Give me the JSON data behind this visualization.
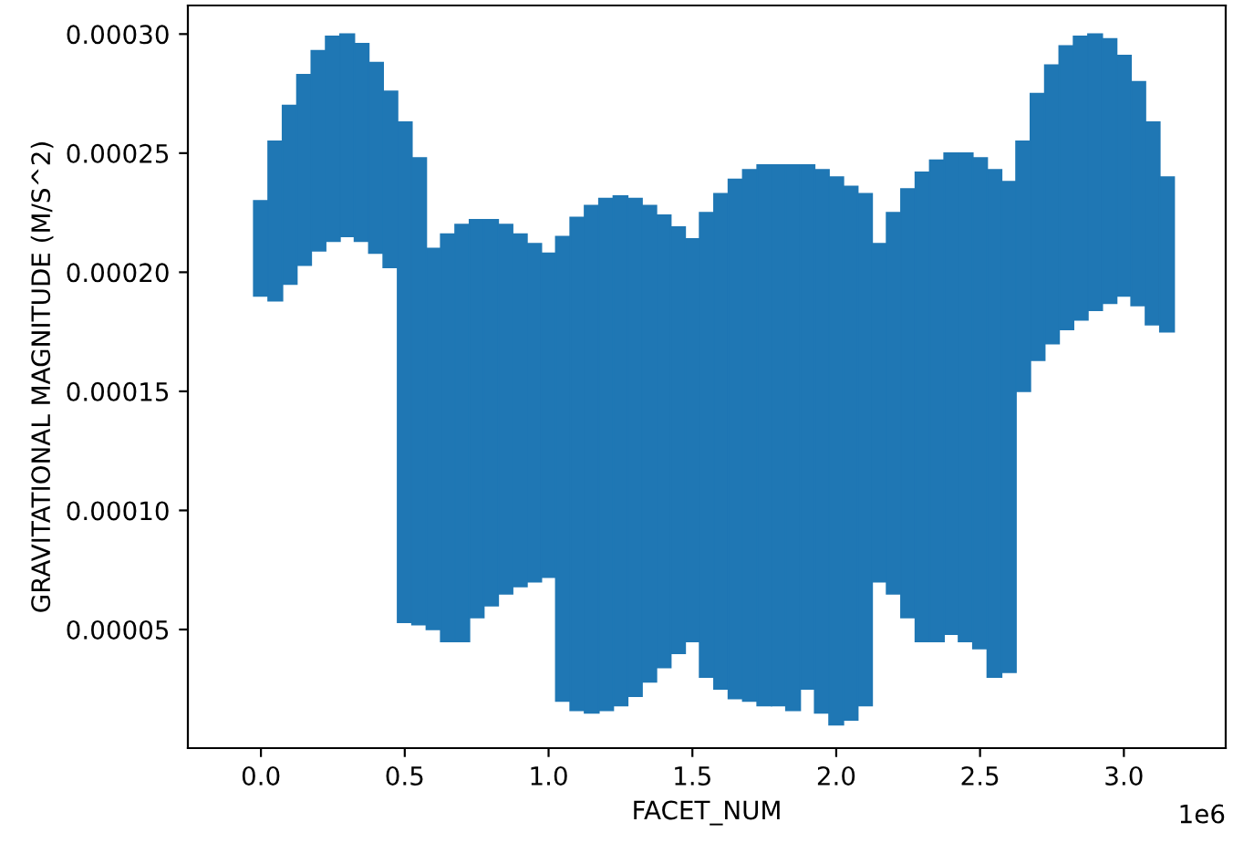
{
  "chart_data": {
    "type": "bar",
    "xlabel": "FACET_NUM",
    "ylabel": "GRAVITATIONAL MAGNITUDE (M/S^2)",
    "x": [
      0,
      0.05,
      0.1,
      0.15,
      0.2,
      0.25,
      0.3,
      0.35,
      0.4,
      0.45,
      0.5,
      0.55,
      0.6,
      0.65,
      0.7,
      0.75,
      0.8,
      0.85,
      0.9,
      0.95,
      1.0,
      1.05,
      1.1,
      1.15,
      1.2,
      1.25,
      1.3,
      1.35,
      1.4,
      1.45,
      1.5,
      1.55,
      1.6,
      1.65,
      1.7,
      1.75,
      1.8,
      1.85,
      1.9,
      1.95,
      2.0,
      2.05,
      2.1,
      2.15,
      2.2,
      2.25,
      2.3,
      2.35,
      2.4,
      2.45,
      2.5,
      2.55,
      2.6,
      2.65,
      2.7,
      2.75,
      2.8,
      2.85,
      2.9,
      2.95,
      3.0,
      3.05,
      3.1,
      3.15
    ],
    "base": [
      0.00019,
      0.000188,
      0.000195,
      0.000203,
      0.000209,
      0.000213,
      0.000215,
      0.000213,
      0.000208,
      0.000202,
      5.3e-05,
      5.2e-05,
      5e-05,
      4.5e-05,
      4.5e-05,
      5.5e-05,
      6e-05,
      6.5e-05,
      6.8e-05,
      7e-05,
      7.2e-05,
      2e-05,
      1.6e-05,
      1.5e-05,
      1.6e-05,
      1.8e-05,
      2.2e-05,
      2.8e-05,
      3.4e-05,
      4e-05,
      4.5e-05,
      3e-05,
      2.5e-05,
      2.1e-05,
      2e-05,
      1.8e-05,
      1.8e-05,
      1.6e-05,
      2.5e-05,
      1.5e-05,
      1e-05,
      1.2e-05,
      1.8e-05,
      7e-05,
      6.5e-05,
      5.5e-05,
      4.5e-05,
      4.5e-05,
      4.8e-05,
      4.5e-05,
      4.2e-05,
      3e-05,
      3.2e-05,
      0.00015,
      0.000163,
      0.00017,
      0.000176,
      0.00018,
      0.000184,
      0.000187,
      0.00019,
      0.000186,
      0.000178,
      0.000175
    ],
    "values": [
      4e-05,
      6.7e-05,
      7.5e-05,
      8e-05,
      8.4e-05,
      8.6e-05,
      8.5e-05,
      8.3e-05,
      8e-05,
      7.4e-05,
      0.00021,
      0.000196,
      0.00016,
      0.000171,
      0.000175,
      0.000167,
      0.000162,
      0.000155,
      0.000148,
      0.000142,
      0.000136,
      0.000195,
      0.000207,
      0.000213,
      0.000215,
      0.000214,
      0.000209,
      0.0002,
      0.00019,
      0.000179,
      0.000169,
      0.000195,
      0.000208,
      0.000218,
      0.000223,
      0.000227,
      0.000227,
      0.000229,
      0.00022,
      0.000228,
      0.00023,
      0.000224,
      0.000215,
      0.000142,
      0.00016,
      0.00018,
      0.000197,
      0.000202,
      0.000202,
      0.000205,
      0.000206,
      0.000213,
      0.000206,
      0.000105,
      0.000112,
      0.000117,
      0.000119,
      0.000119,
      0.000116,
      0.000111,
      0.000101,
      9.4e-05,
      8.5e-05,
      6.5e-05
    ],
    "color": "#1f77b4",
    "xlim": [
      -0.254,
      3.354
    ],
    "ylim": [
      2e-07,
      0.000312
    ],
    "xticks": [
      {
        "value": 0,
        "label": "0.0"
      },
      0.5,
      {
        "value": 1,
        "label": "1.0"
      },
      1.5,
      {
        "value": 2,
        "label": "2.0"
      },
      2.5,
      {
        "value": 3,
        "label": "3.0"
      }
    ],
    "yticks": [
      {
        "value": 5e-05,
        "label": "0.00005"
      },
      {
        "value": 0.0001,
        "label": "0.00010"
      },
      {
        "value": 0.00015,
        "label": "0.00015"
      },
      {
        "value": 0.0002,
        "label": "0.00020"
      },
      {
        "value": 0.00025,
        "label": "0.00025"
      },
      {
        "value": 0.0003,
        "label": "0.00030"
      }
    ],
    "annotations": [
      "1e6"
    ],
    "grid": false
  }
}
